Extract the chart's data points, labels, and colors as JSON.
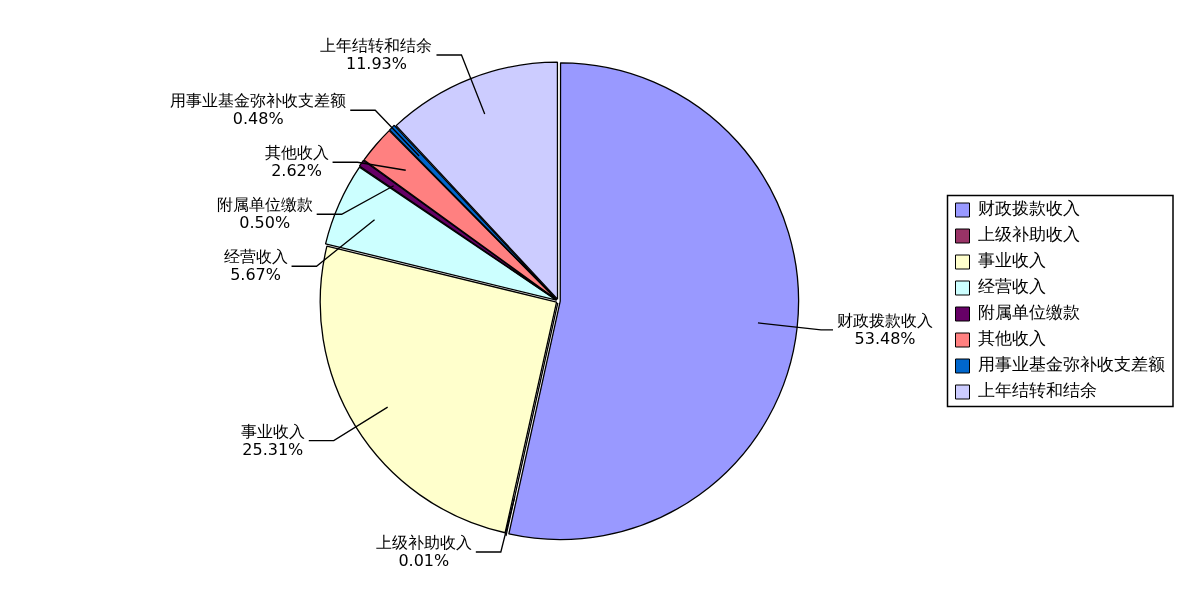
{
  "chart_data": {
    "type": "pie",
    "categories": [
      "财政拨款收入",
      "上级补助收入",
      "事业收入",
      "经营收入",
      "附属单位缴款",
      "其他收入",
      "用事业基金弥补收支差额",
      "上年结转和结余"
    ],
    "values": [
      53.48,
      0.01,
      25.31,
      5.67,
      0.5,
      2.62,
      0.48,
      11.93
    ],
    "value_labels": [
      "53.48%",
      "0.01%",
      "25.31%",
      "5.67%",
      "0.50%",
      "2.62%",
      "0.48%",
      "11.93%"
    ],
    "colors": [
      "#9999ff",
      "#993366",
      "#ffffcc",
      "#ccffff",
      "#660066",
      "#ff8080",
      "#0066cc",
      "#ccccff"
    ],
    "legend": "right"
  }
}
